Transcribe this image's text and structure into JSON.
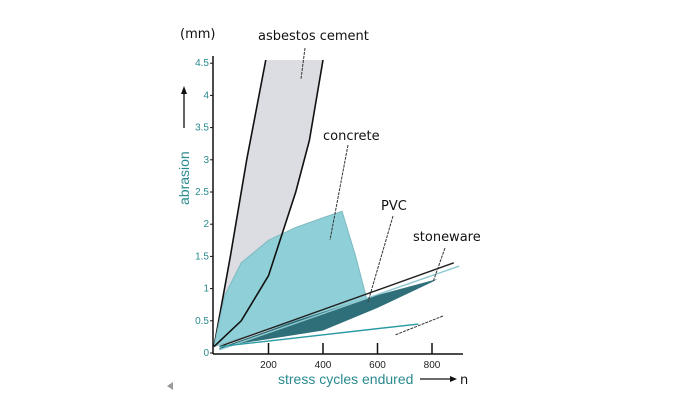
{
  "chart_data": {
    "type": "area",
    "title": "",
    "xlabel": "stress cycles endured",
    "xlabel_arrow_label": "n",
    "ylabel": "abrasion",
    "yunit": "(mm)",
    "xlim": [
      0,
      910
    ],
    "ylim": [
      0,
      4.6
    ],
    "xticks": [
      200,
      400,
      600,
      800
    ],
    "yticks": [
      0,
      0.5,
      1,
      1.5,
      2,
      2.5,
      3,
      3.5,
      4,
      4.5
    ],
    "grid": false,
    "colors": {
      "asbestos": "#dcdce3",
      "concrete": "#8fd0d8",
      "pvc": "#2f6f7a",
      "stoneware": "#2a9aa3",
      "axis_text": "#2a8a8f"
    },
    "series": [
      {
        "name": "asbestos cement",
        "kind": "band",
        "upper": [
          [
            0,
            0.1
          ],
          [
            60,
            1.5
          ],
          [
            120,
            3.0
          ],
          [
            190,
            4.55
          ]
        ],
        "lower": [
          [
            0,
            0.1
          ],
          [
            100,
            0.5
          ],
          [
            200,
            1.2
          ],
          [
            300,
            2.5
          ],
          [
            350,
            3.3
          ],
          [
            400,
            4.55
          ]
        ]
      },
      {
        "name": "concrete",
        "kind": "area",
        "upper": [
          [
            0,
            0.1
          ],
          [
            40,
            0.9
          ],
          [
            100,
            1.4
          ],
          [
            200,
            1.75
          ],
          [
            300,
            1.95
          ],
          [
            400,
            2.1
          ],
          [
            470,
            2.2
          ],
          [
            520,
            1.5
          ],
          [
            560,
            0.85
          ]
        ],
        "lower": [
          [
            0,
            0.1
          ],
          [
            300,
            0.5
          ],
          [
            560,
            0.85
          ]
        ]
      },
      {
        "name": "PVC",
        "kind": "band",
        "upper": [
          [
            20,
            0.08
          ],
          [
            300,
            0.5
          ],
          [
            600,
            0.9
          ],
          [
            820,
            1.15
          ]
        ],
        "lower": [
          [
            20,
            0.05
          ],
          [
            100,
            0.15
          ],
          [
            400,
            0.35
          ],
          [
            600,
            0.7
          ],
          [
            800,
            1.1
          ],
          [
            820,
            1.15
          ]
        ]
      },
      {
        "name": "stoneware",
        "kind": "lines",
        "lines": [
          [
            [
              20,
              0.1
            ],
            [
              880,
              1.4
            ]
          ],
          [
            [
              20,
              0.05
            ],
            [
              900,
              1.35
            ]
          ],
          [
            [
              20,
              0.1
            ],
            [
              750,
              0.45
            ]
          ]
        ]
      }
    ],
    "annotations": [
      "asbestos cement",
      "concrete",
      "PVC",
      "stoneware"
    ]
  }
}
